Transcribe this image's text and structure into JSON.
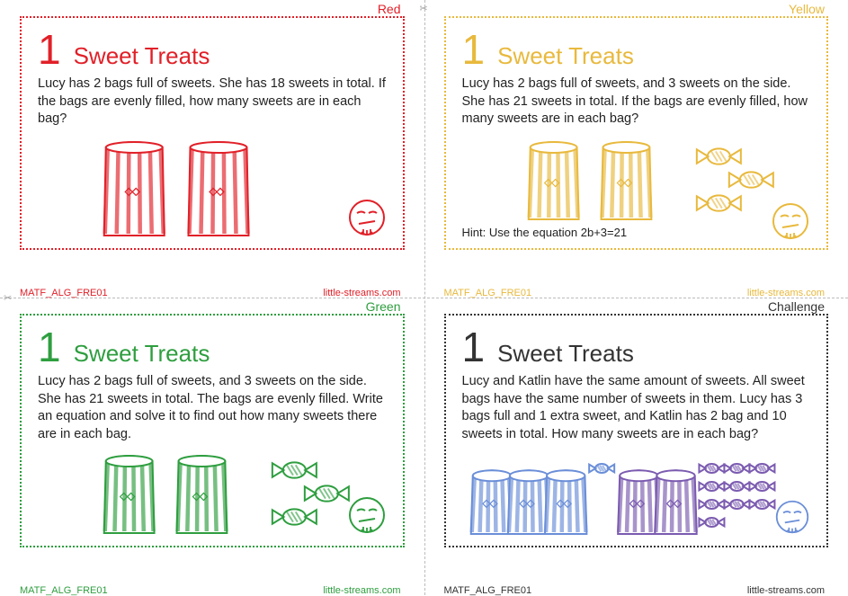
{
  "worksheet_code": "MATF_ALG_FRE01",
  "site": "little-streams.com",
  "cards": [
    {
      "level": "Red",
      "color": "#e12028",
      "number": "1",
      "title": "Sweet Treats",
      "body": "Lucy has 2 bags full of sweets. She has 18 sweets in total. If the bags are evenly filled, how many sweets are in each bag?",
      "hint": "",
      "illustration": {
        "bags": 2,
        "sweets": 0,
        "bag_color": "#e12028",
        "sweet_color": "#e12028"
      },
      "face_color": "#e12028"
    },
    {
      "level": "Yellow",
      "color": "#e8b93d",
      "number": "1",
      "title": "Sweet Treats",
      "body": "Lucy has 2 bags full of sweets, and 3 sweets on the side. She has 21 sweets in total. If the bags are evenly filled, how many sweets are in each bag?",
      "hint": "Hint: Use the equation 2b+3=21",
      "illustration": {
        "bags": 2,
        "sweets": 3,
        "bag_color": "#e8b93d",
        "sweet_color": "#e8b93d"
      },
      "face_color": "#e8b93d"
    },
    {
      "level": "Green",
      "color": "#2e9e3f",
      "number": "1",
      "title": "Sweet Treats",
      "body": "Lucy has 2 bags full of sweets, and 3 sweets on the side. She has 21 sweets in total. The bags are evenly filled. Write an equation and solve it to find out how many sweets there are in each bag.",
      "hint": "",
      "illustration": {
        "bags": 2,
        "sweets": 3,
        "bag_color": "#2e9e3f",
        "sweet_color": "#2e9e3f"
      },
      "face_color": "#2e9e3f"
    },
    {
      "level": "Challenge",
      "color": "#333333",
      "number": "1",
      "title": "Sweet Treats",
      "body": "Lucy and Katlin have the same amount of sweets. All sweet bags have the same number of sweets in them. Lucy has 3 bags full and 1 extra sweet, and Katlin has 2 bag and 10 sweets in total. How many sweets are in each bag?",
      "hint": "",
      "illustration": {
        "groups": [
          {
            "bags": 3,
            "sweets": 1,
            "bag_color": "#6a8ed8",
            "sweet_color": "#6a8ed8"
          },
          {
            "bags": 2,
            "sweets": 10,
            "bag_color": "#7b5bb0",
            "sweet_color": "#7b5bb0"
          }
        ]
      },
      "face_color": "#6a8ed8"
    }
  ],
  "fonts": {
    "body_size_pt": 11,
    "title_size_pt": 20,
    "number_size_pt": 34
  }
}
